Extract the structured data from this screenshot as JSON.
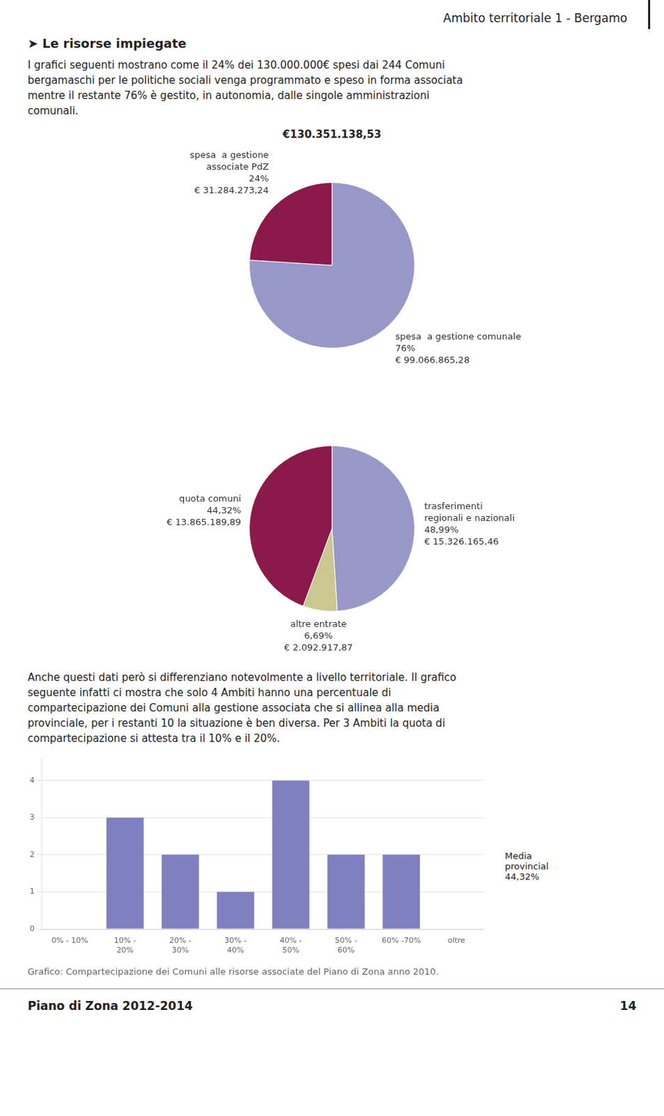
{
  "title": "Ambito territoriale 1 - Bergamo",
  "subtitle": "➤   Le risorse impiegate",
  "text": [
    "I grafici seguenti mostrano come il 24% dei 130.000.000€ spesi dai 244 Comuni\nbergamaschi per le politiche sociali venga programmato e speso in forma associata\nmentre il restante 76% è gestito, in autonomia, dalle singole amministrazioni\ncomunali.",
    "Anche questi dati però si differenziano notevolmente a livello territoriale. Il grafico\nseguente infatti ci mostra che solo 4 Ambiti hanno una percentuale di\ncompartecipazione dei Comuni alla gestione associata che si allinea alla media\nprovinciale, per i restanti 10 la situazione è ben diversa. Per 3 Ambiti la quota di\ncompartecipazione si attesta tra il 10% e il 20%."
  ],
  "footer": [
    "Piano di Zona 2012-2014",
    "14"
  ],
  "chart_data": [
    {
      "type": "pie",
      "categories": [
        "spesa  a gestione comunale",
        "spesa  a gestione\nassociate PdZ"
      ],
      "values": [
        76,
        24
      ],
      "value_labels": [
        "76%",
        "24%"
      ],
      "amount_labels": [
        "€ 99.066.865,28",
        "€ 31.284.273,24"
      ],
      "colors": [
        "#9898C8",
        "#8B1A4A"
      ],
      "data_labels": true,
      "annotations": [
        "€130.351.138,53"
      ]
    },
    {
      "type": "pie",
      "categories": [
        "trasferimenti\nregionali e nazionali",
        "altre entrate",
        "quota comuni"
      ],
      "values": [
        48.99,
        6.69,
        44.32
      ],
      "value_labels": [
        "48,99%",
        "6,69%",
        "44,32%"
      ],
      "amount_labels": [
        "€ 15.326.165,46",
        "€ 2.092.917,87",
        "€ 13.865.189,89"
      ],
      "colors": [
        "#9898C8",
        "#C8C890",
        "#8B1A4A"
      ],
      "data_labels": true
    },
    {
      "type": "bar",
      "title": "Grafico: Compartecipazione dei Comuni alle risorse associate del Piano di Zona anno 2010.",
      "categories": [
        "0% - 10%",
        "10% -\n20%",
        "20% -\n30%",
        "30% -\n40%",
        "40% -\n50%",
        "50% -\n60%",
        "60% -70%",
        "oltre"
      ],
      "values": [
        0,
        3,
        2,
        1,
        4,
        2,
        2,
        0
      ],
      "color": "#8080C0",
      "ylim": [
        0,
        4.6
      ],
      "yticks": [
        0,
        1,
        2,
        3,
        4
      ],
      "grid": true,
      "annotations": [
        "Media\nprovincial\n44,32%"
      ]
    }
  ]
}
